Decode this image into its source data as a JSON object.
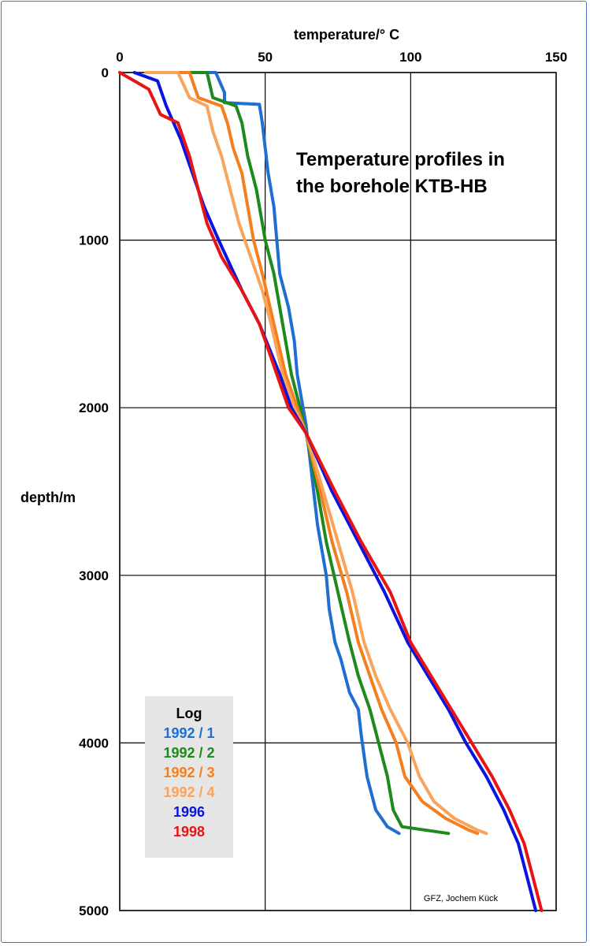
{
  "chart_data": {
    "type": "line",
    "title": [
      "Temperature profiles in",
      "the borehole KTB-HB"
    ],
    "xlabel": "temperature/° C",
    "ylabel": "depth/m",
    "xlim": [
      0,
      150
    ],
    "ylim": [
      0,
      5000
    ],
    "y_inverted": true,
    "x_axis_position": "top",
    "x_ticks": [
      "0",
      "50",
      "100",
      "150"
    ],
    "y_ticks": [
      "0",
      "1000",
      "2000",
      "3000",
      "4000",
      "5000"
    ],
    "grid": true,
    "legend_title": "Log",
    "legend_position": "bottom-left",
    "credit": "GFZ, Jochem Kück",
    "series": [
      {
        "name": "1992 / 1",
        "color": "#1f6fd1",
        "points": [
          [
            18,
            0
          ],
          [
            33,
            0
          ],
          [
            36,
            120
          ],
          [
            36,
            180
          ],
          [
            48,
            190
          ],
          [
            49,
            300
          ],
          [
            50,
            450
          ],
          [
            51,
            600
          ],
          [
            53,
            800
          ],
          [
            54,
            1000
          ],
          [
            55,
            1200
          ],
          [
            58,
            1400
          ],
          [
            60,
            1600
          ],
          [
            61,
            1800
          ],
          [
            63,
            2000
          ],
          [
            64,
            2100
          ],
          [
            66,
            2400
          ],
          [
            68,
            2700
          ],
          [
            71,
            3000
          ],
          [
            72,
            3200
          ],
          [
            74,
            3400
          ],
          [
            75,
            3450
          ],
          [
            76,
            3500
          ],
          [
            79,
            3700
          ],
          [
            82,
            3800
          ],
          [
            83,
            3950
          ],
          [
            85,
            4200
          ],
          [
            88,
            4400
          ],
          [
            92,
            4500
          ],
          [
            96,
            4540
          ]
        ]
      },
      {
        "name": "1992 / 2",
        "color": "#1e8a1e",
        "points": [
          [
            17,
            0
          ],
          [
            30,
            0
          ],
          [
            32,
            150
          ],
          [
            40,
            200
          ],
          [
            42,
            300
          ],
          [
            44,
            500
          ],
          [
            47,
            700
          ],
          [
            50,
            1000
          ],
          [
            53,
            1200
          ],
          [
            56,
            1500
          ],
          [
            59,
            1800
          ],
          [
            62,
            2000
          ],
          [
            64,
            2150
          ],
          [
            68,
            2500
          ],
          [
            71,
            2800
          ],
          [
            75,
            3100
          ],
          [
            79,
            3400
          ],
          [
            82,
            3600
          ],
          [
            86,
            3800
          ],
          [
            89,
            4000
          ],
          [
            92,
            4200
          ],
          [
            94,
            4400
          ],
          [
            97,
            4500
          ],
          [
            113,
            4540
          ]
        ]
      },
      {
        "name": "1992 / 3",
        "color": "#f57f1e",
        "points": [
          [
            14,
            0
          ],
          [
            24,
            0
          ],
          [
            27,
            150
          ],
          [
            35,
            200
          ],
          [
            37,
            300
          ],
          [
            39,
            450
          ],
          [
            42,
            600
          ],
          [
            44,
            800
          ],
          [
            46,
            1000
          ],
          [
            49,
            1200
          ],
          [
            53,
            1500
          ],
          [
            57,
            1800
          ],
          [
            61,
            2000
          ],
          [
            64,
            2150
          ],
          [
            69,
            2500
          ],
          [
            73,
            2800
          ],
          [
            78,
            3100
          ],
          [
            82,
            3400
          ],
          [
            86,
            3600
          ],
          [
            90,
            3800
          ],
          [
            95,
            4000
          ],
          [
            98,
            4200
          ],
          [
            104,
            4350
          ],
          [
            112,
            4450
          ],
          [
            120,
            4520
          ],
          [
            123,
            4540
          ]
        ]
      },
      {
        "name": "1992 / 4",
        "color": "#f9a45c",
        "points": [
          [
            9,
            0
          ],
          [
            20,
            0
          ],
          [
            24,
            150
          ],
          [
            30,
            200
          ],
          [
            32,
            350
          ],
          [
            35,
            500
          ],
          [
            38,
            700
          ],
          [
            41,
            900
          ],
          [
            45,
            1100
          ],
          [
            49,
            1300
          ],
          [
            52,
            1500
          ],
          [
            56,
            1800
          ],
          [
            60,
            2000
          ],
          [
            64,
            2150
          ],
          [
            70,
            2500
          ],
          [
            75,
            2800
          ],
          [
            80,
            3100
          ],
          [
            84,
            3400
          ],
          [
            88,
            3600
          ],
          [
            93,
            3800
          ],
          [
            99,
            4000
          ],
          [
            103,
            4200
          ],
          [
            108,
            4350
          ],
          [
            115,
            4450
          ],
          [
            123,
            4520
          ],
          [
            126,
            4540
          ]
        ]
      },
      {
        "name": "1996",
        "color": "#0a14e0",
        "points": [
          [
            5,
            0
          ],
          [
            13,
            50
          ],
          [
            16,
            200
          ],
          [
            21,
            400
          ],
          [
            25,
            600
          ],
          [
            29,
            800
          ],
          [
            34,
            1000
          ],
          [
            42,
            1300
          ],
          [
            48,
            1500
          ],
          [
            55,
            1800
          ],
          [
            59,
            2000
          ],
          [
            64,
            2150
          ],
          [
            73,
            2500
          ],
          [
            82,
            2800
          ],
          [
            91,
            3100
          ],
          [
            99,
            3400
          ],
          [
            106,
            3600
          ],
          [
            113,
            3800
          ],
          [
            119,
            4000
          ],
          [
            126,
            4200
          ],
          [
            132,
            4400
          ],
          [
            137,
            4600
          ],
          [
            140,
            4800
          ],
          [
            143,
            5000
          ]
        ]
      },
      {
        "name": "1998",
        "color": "#e81414",
        "points": [
          [
            0,
            0
          ],
          [
            5,
            50
          ],
          [
            10,
            100
          ],
          [
            14,
            250
          ],
          [
            20,
            300
          ],
          [
            24,
            500
          ],
          [
            27,
            700
          ],
          [
            30,
            900
          ],
          [
            35,
            1100
          ],
          [
            42,
            1300
          ],
          [
            48,
            1500
          ],
          [
            54,
            1800
          ],
          [
            58,
            2000
          ],
          [
            64,
            2150
          ],
          [
            74,
            2500
          ],
          [
            83,
            2800
          ],
          [
            93,
            3100
          ],
          [
            100,
            3400
          ],
          [
            107,
            3600
          ],
          [
            114,
            3800
          ],
          [
            121,
            4000
          ],
          [
            128,
            4200
          ],
          [
            134,
            4400
          ],
          [
            139,
            4600
          ],
          [
            142,
            4800
          ],
          [
            145,
            5000
          ]
        ]
      }
    ]
  }
}
